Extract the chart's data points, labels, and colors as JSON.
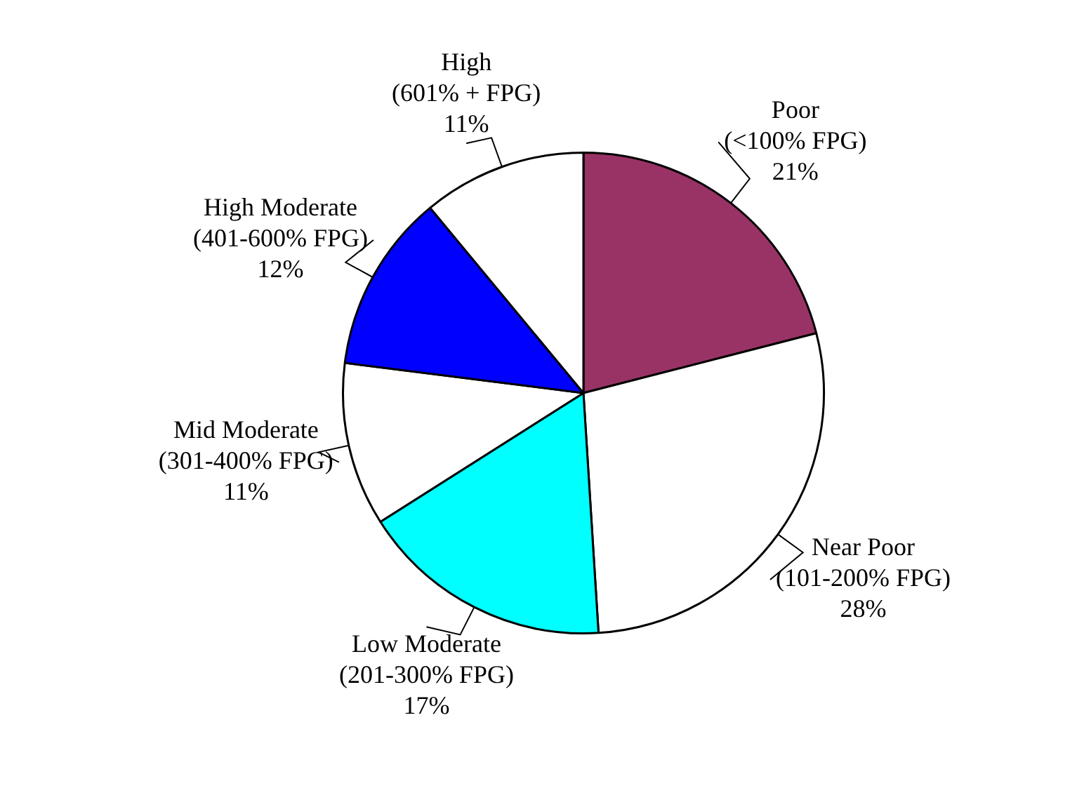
{
  "chart_data": {
    "type": "pie",
    "categories": [
      "Poor (<100% FPG)",
      "Near Poor (101-200% FPG)",
      "Low Moderate (201-300% FPG)",
      "Mid Moderate (301-400% FPG)",
      "High Moderate (401-600% FPG)",
      "High (601% + FPG)"
    ],
    "values": [
      21,
      28,
      17,
      11,
      12,
      11
    ],
    "colors": [
      "#993366",
      "#ffffff",
      "#00ffff",
      "#ffffff",
      "#0000ff",
      "#ffffff"
    ],
    "value_labels": [
      "21%",
      "28%",
      "17%",
      "11%",
      "12%",
      "11%"
    ],
    "legend": false
  }
}
